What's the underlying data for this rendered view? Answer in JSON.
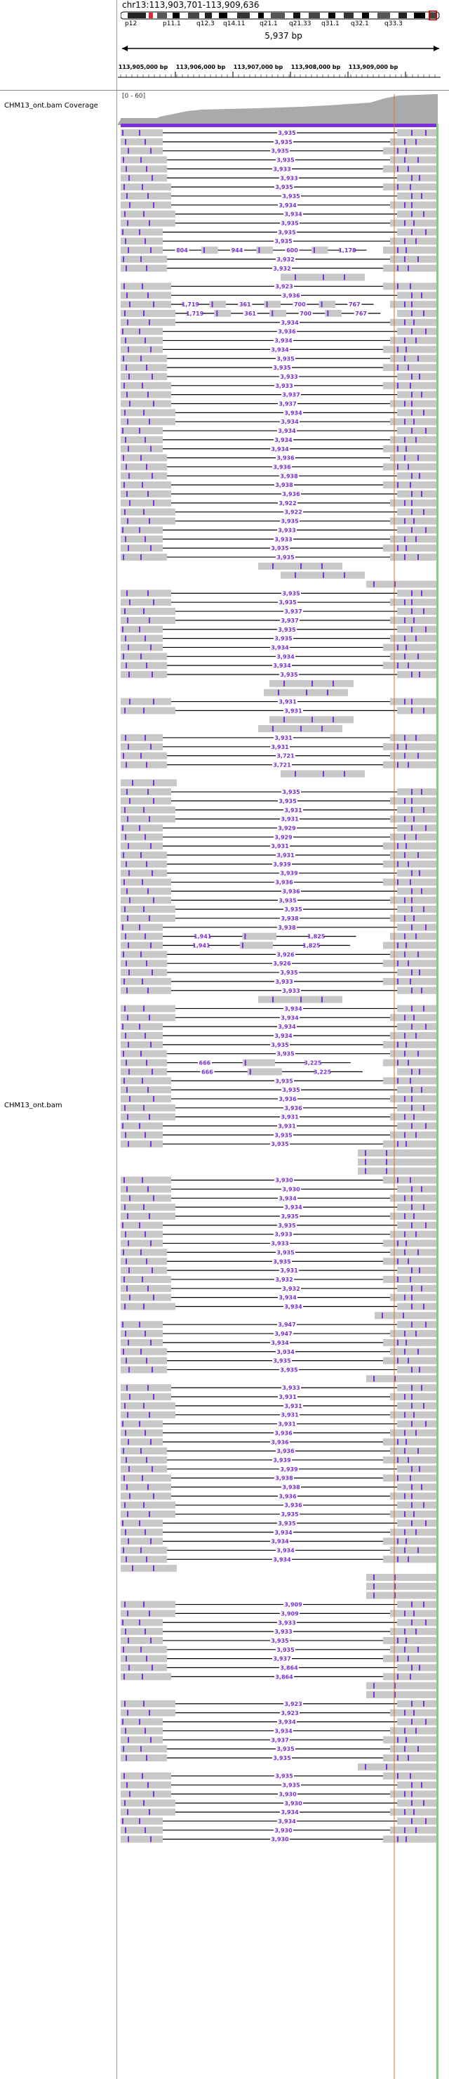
{
  "locus": "chr13:113,903,701-113,909,636",
  "ideogram": {
    "bands": [
      "p12",
      "p11.1",
      "q12.3",
      "q14.11",
      "q21.1",
      "q21.33",
      "q31.1",
      "q32.1",
      "q33.3"
    ]
  },
  "span_label": "5,937 bp",
  "ruler": {
    "ticks": [
      "113,905,000 bp",
      "113,906,000 bp",
      "113,907,000 bp",
      "113,908,000 bp",
      "113,909,000 bp"
    ]
  },
  "tracks": {
    "coverage_label": "CHM13_ont.bam Coverage",
    "coverage_range": "[0 - 60]",
    "alignment_label": "CHM13_ont.bam"
  },
  "colors": {
    "read": "#c8c8c8",
    "insertion": "#7b2fd6",
    "deletion_line": "#000000",
    "deletion_label": "#7b2fd6",
    "coverage": "#aaaaaa",
    "ideogram_centromere": "#d9263a"
  },
  "reads": [
    {
      "type": "split",
      "del": "3,935"
    },
    {
      "type": "split",
      "del": "3,935"
    },
    {
      "type": "split",
      "del": "3,935"
    },
    {
      "type": "split",
      "del": "3,935"
    },
    {
      "type": "split",
      "del": "3,933"
    },
    {
      "type": "split",
      "del": "3,933"
    },
    {
      "type": "split",
      "del": "3,935"
    },
    {
      "type": "split",
      "del": "3,935"
    },
    {
      "type": "split",
      "del": "3,934"
    },
    {
      "type": "split",
      "del": "3,934"
    },
    {
      "type": "split",
      "del": "3,935"
    },
    {
      "type": "split",
      "del": "3,935"
    },
    {
      "type": "split",
      "del": "3,935"
    },
    {
      "type": "multi",
      "dels": [
        "804",
        "944",
        "600",
        "1,178"
      ]
    },
    {
      "type": "split",
      "del": "3,932"
    },
    {
      "type": "split",
      "del": "3,932"
    },
    {
      "type": "middle"
    },
    {
      "type": "split",
      "del": "3,923"
    },
    {
      "type": "split",
      "del": "3,936"
    },
    {
      "type": "multi",
      "dels": [
        "1,719",
        "361",
        "700",
        "767"
      ]
    },
    {
      "type": "multi",
      "dels": [
        "1,719",
        "361",
        "700",
        "767"
      ]
    },
    {
      "type": "split",
      "del": "3,934"
    },
    {
      "type": "split",
      "del": "3,936"
    },
    {
      "type": "split",
      "del": "3,934"
    },
    {
      "type": "split",
      "del": "3,934"
    },
    {
      "type": "split",
      "del": "3,935"
    },
    {
      "type": "split",
      "del": "3,935"
    },
    {
      "type": "split",
      "del": "3,933"
    },
    {
      "type": "split",
      "del": "3,933"
    },
    {
      "type": "split",
      "del": "3,937"
    },
    {
      "type": "split",
      "del": "3,937"
    },
    {
      "type": "split",
      "del": "3,934"
    },
    {
      "type": "split",
      "del": "3,934"
    },
    {
      "type": "split",
      "del": "3,934"
    },
    {
      "type": "split",
      "del": "3,934"
    },
    {
      "type": "split",
      "del": "3,934"
    },
    {
      "type": "split",
      "del": "3,936"
    },
    {
      "type": "split",
      "del": "3,936"
    },
    {
      "type": "split",
      "del": "3,938"
    },
    {
      "type": "split",
      "del": "3,938"
    },
    {
      "type": "split",
      "del": "3,936"
    },
    {
      "type": "split",
      "del": "3,922"
    },
    {
      "type": "split",
      "del": "3,922"
    },
    {
      "type": "split",
      "del": "3,935"
    },
    {
      "type": "split",
      "del": "3,933"
    },
    {
      "type": "split",
      "del": "3,933"
    },
    {
      "type": "split",
      "del": "3,935"
    },
    {
      "type": "split",
      "del": "3,935"
    },
    {
      "type": "middle"
    },
    {
      "type": "middle"
    },
    {
      "type": "right"
    },
    {
      "type": "split",
      "del": "3,935"
    },
    {
      "type": "split",
      "del": "3,935"
    },
    {
      "type": "split",
      "del": "3,937"
    },
    {
      "type": "split",
      "del": "3,937"
    },
    {
      "type": "split",
      "del": "3,935"
    },
    {
      "type": "split",
      "del": "3,935"
    },
    {
      "type": "split",
      "del": "3,934"
    },
    {
      "type": "split",
      "del": "3,934"
    },
    {
      "type": "split",
      "del": "3,934"
    },
    {
      "type": "split",
      "del": "3,935"
    },
    {
      "type": "middle"
    },
    {
      "type": "middle"
    },
    {
      "type": "split",
      "del": "3,931"
    },
    {
      "type": "split",
      "del": "3,931"
    },
    {
      "type": "middle"
    },
    {
      "type": "middle"
    },
    {
      "type": "split",
      "del": "3,931"
    },
    {
      "type": "split",
      "del": "3,931"
    },
    {
      "type": "split",
      "del": "3,721"
    },
    {
      "type": "split",
      "del": "3,721"
    },
    {
      "type": "middle"
    },
    {
      "type": "left"
    },
    {
      "type": "split",
      "del": "3,935"
    },
    {
      "type": "split",
      "del": "3,935"
    },
    {
      "type": "split",
      "del": "3,931"
    },
    {
      "type": "split",
      "del": "3,931"
    },
    {
      "type": "split",
      "del": "3,929"
    },
    {
      "type": "split",
      "del": "3,929"
    },
    {
      "type": "split",
      "del": "3,931"
    },
    {
      "type": "split",
      "del": "3,931"
    },
    {
      "type": "split",
      "del": "3,939"
    },
    {
      "type": "split",
      "del": "3,939"
    },
    {
      "type": "split",
      "del": "3,936"
    },
    {
      "type": "split",
      "del": "3,936"
    },
    {
      "type": "split",
      "del": "3,935"
    },
    {
      "type": "split",
      "del": "3,935"
    },
    {
      "type": "split",
      "del": "3,938"
    },
    {
      "type": "split",
      "del": "3,938"
    },
    {
      "type": "multi",
      "dels": [
        "1,941",
        "1,825"
      ]
    },
    {
      "type": "multi",
      "dels": [
        "1,941",
        "1,825"
      ]
    },
    {
      "type": "split",
      "del": "3,926"
    },
    {
      "type": "split",
      "del": "3,926"
    },
    {
      "type": "split",
      "del": "3,935"
    },
    {
      "type": "split",
      "del": "3,933"
    },
    {
      "type": "split",
      "del": "3,933"
    },
    {
      "type": "middle"
    },
    {
      "type": "split",
      "del": "3,934"
    },
    {
      "type": "split",
      "del": "3,934"
    },
    {
      "type": "split",
      "del": "3,934"
    },
    {
      "type": "split",
      "del": "3,934"
    },
    {
      "type": "split",
      "del": "3,935"
    },
    {
      "type": "split",
      "del": "3,935"
    },
    {
      "type": "multi",
      "dels": [
        "666",
        "3,225"
      ]
    },
    {
      "type": "multi",
      "dels": [
        "666",
        "3,225"
      ]
    },
    {
      "type": "split",
      "del": "3,935"
    },
    {
      "type": "split",
      "del": "3,935"
    },
    {
      "type": "split",
      "del": "3,936"
    },
    {
      "type": "split",
      "del": "3,936"
    },
    {
      "type": "split",
      "del": "3,931"
    },
    {
      "type": "split",
      "del": "3,931"
    },
    {
      "type": "split",
      "del": "3,935"
    },
    {
      "type": "split",
      "del": "3,935"
    },
    {
      "type": "right"
    },
    {
      "type": "right"
    },
    {
      "type": "right"
    },
    {
      "type": "split",
      "del": "3,930"
    },
    {
      "type": "split",
      "del": "3,930"
    },
    {
      "type": "split",
      "del": "3,934"
    },
    {
      "type": "split",
      "del": "3,934"
    },
    {
      "type": "split",
      "del": "3,935"
    },
    {
      "type": "split",
      "del": "3,935"
    },
    {
      "type": "split",
      "del": "3,933"
    },
    {
      "type": "split",
      "del": "3,933"
    },
    {
      "type": "split",
      "del": "3,935"
    },
    {
      "type": "split",
      "del": "3,935"
    },
    {
      "type": "split",
      "del": "3,931"
    },
    {
      "type": "split",
      "del": "3,932"
    },
    {
      "type": "split",
      "del": "3,932"
    },
    {
      "type": "split",
      "del": "3,934"
    },
    {
      "type": "split",
      "del": "3,934"
    },
    {
      "type": "right"
    },
    {
      "type": "split",
      "del": "3,947"
    },
    {
      "type": "split",
      "del": "3,947"
    },
    {
      "type": "split",
      "del": "3,934"
    },
    {
      "type": "split",
      "del": "3,934"
    },
    {
      "type": "split",
      "del": "3,935"
    },
    {
      "type": "split",
      "del": "3,935"
    },
    {
      "type": "right"
    },
    {
      "type": "split",
      "del": "3,933"
    },
    {
      "type": "split",
      "del": "3,931"
    },
    {
      "type": "split",
      "del": "3,931"
    },
    {
      "type": "split",
      "del": "3,931"
    },
    {
      "type": "split",
      "del": "3,931"
    },
    {
      "type": "split",
      "del": "3,936"
    },
    {
      "type": "split",
      "del": "3,936"
    },
    {
      "type": "split",
      "del": "3,936"
    },
    {
      "type": "split",
      "del": "3,939"
    },
    {
      "type": "split",
      "del": "3,939"
    },
    {
      "type": "split",
      "del": "3,938"
    },
    {
      "type": "split",
      "del": "3,938"
    },
    {
      "type": "split",
      "del": "3,936"
    },
    {
      "type": "split",
      "del": "3,936"
    },
    {
      "type": "split",
      "del": "3,935"
    },
    {
      "type": "split",
      "del": "3,935"
    },
    {
      "type": "split",
      "del": "3,934"
    },
    {
      "type": "split",
      "del": "3,934"
    },
    {
      "type": "split",
      "del": "3,934"
    },
    {
      "type": "split",
      "del": "3,934"
    },
    {
      "type": "left"
    },
    {
      "type": "right"
    },
    {
      "type": "right"
    },
    {
      "type": "right"
    },
    {
      "type": "split",
      "del": "3,909"
    },
    {
      "type": "split",
      "del": "3,909"
    },
    {
      "type": "split",
      "del": "3,933"
    },
    {
      "type": "split",
      "del": "3,933"
    },
    {
      "type": "split",
      "del": "3,935"
    },
    {
      "type": "split",
      "del": "3,935"
    },
    {
      "type": "split",
      "del": "3,937"
    },
    {
      "type": "split",
      "del": "3,864"
    },
    {
      "type": "split",
      "del": "3,864"
    },
    {
      "type": "right"
    },
    {
      "type": "right"
    },
    {
      "type": "split",
      "del": "3,923"
    },
    {
      "type": "split",
      "del": "3,923"
    },
    {
      "type": "split",
      "del": "3,934"
    },
    {
      "type": "split",
      "del": "3,934"
    },
    {
      "type": "split",
      "del": "3,937"
    },
    {
      "type": "split",
      "del": "3,935"
    },
    {
      "type": "split",
      "del": "3,935"
    },
    {
      "type": "right"
    },
    {
      "type": "split",
      "del": "3,935"
    },
    {
      "type": "split",
      "del": "3,935"
    },
    {
      "type": "split",
      "del": "3,930"
    },
    {
      "type": "split",
      "del": "3,930"
    },
    {
      "type": "split",
      "del": "3,934"
    },
    {
      "type": "split",
      "del": "3,934"
    },
    {
      "type": "split",
      "del": "3,930"
    },
    {
      "type": "split",
      "del": "3,930"
    }
  ]
}
